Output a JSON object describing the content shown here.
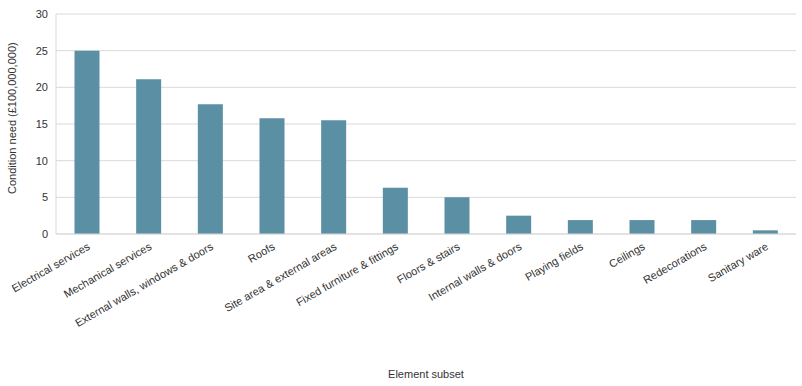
{
  "chart_data": {
    "type": "bar",
    "x_label": "Element subset",
    "y_label": "Condition need (£100,000,000)",
    "categories": [
      "Electrical services",
      "Mechanical services",
      "External walls, windows & doors",
      "Roofs",
      "Site area & external areas",
      "Fixed furniture & fittings",
      "Floors & stairs",
      "Internal walls & doors",
      "Playing fields",
      "Ceilings",
      "Redecorations",
      "Sanitary ware"
    ],
    "values": [
      25,
      21.1,
      17.7,
      15.8,
      15.5,
      6.3,
      5,
      2.5,
      1.9,
      1.9,
      1.9,
      0.5
    ],
    "color": "#5b8fa3",
    "ylim": [
      0,
      30
    ],
    "yticks": [
      0,
      5,
      10,
      15,
      20,
      25,
      30
    ],
    "grid": true
  }
}
